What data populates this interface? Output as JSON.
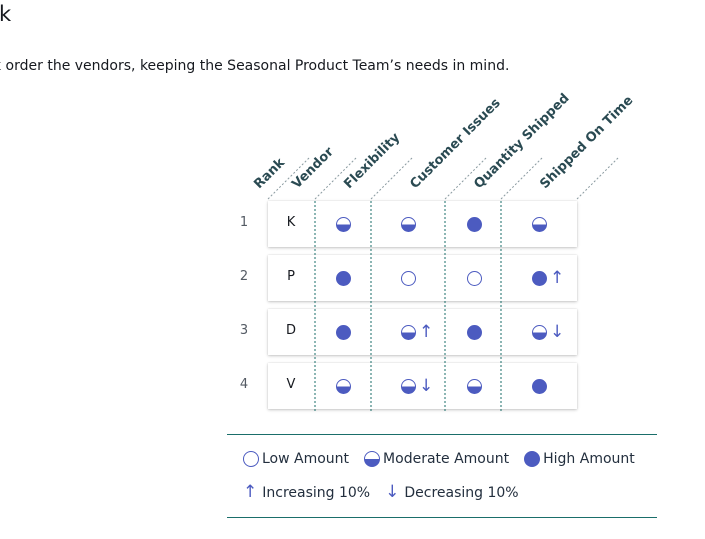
{
  "page": {
    "title": "sk",
    "instructions": "k order the vendors, keeping the Seasonal Product Team’s needs in mind."
  },
  "table": {
    "headers": [
      "Rank",
      "Vendor",
      "Flexibility",
      "Customer Issues",
      "Quantity Shipped",
      "Shipped On Time"
    ],
    "rows": [
      {
        "rank": "1",
        "vendor": "K",
        "cells": [
          {
            "level": "moderate",
            "trend": ""
          },
          {
            "level": "moderate",
            "trend": ""
          },
          {
            "level": "high",
            "trend": ""
          },
          {
            "level": "moderate",
            "trend": ""
          }
        ]
      },
      {
        "rank": "2",
        "vendor": "P",
        "cells": [
          {
            "level": "high",
            "trend": ""
          },
          {
            "level": "low",
            "trend": ""
          },
          {
            "level": "low",
            "trend": ""
          },
          {
            "level": "high",
            "trend": "up"
          }
        ]
      },
      {
        "rank": "3",
        "vendor": "D",
        "cells": [
          {
            "level": "high",
            "trend": ""
          },
          {
            "level": "moderate",
            "trend": "up"
          },
          {
            "level": "high",
            "trend": ""
          },
          {
            "level": "moderate",
            "trend": "down"
          }
        ]
      },
      {
        "rank": "4",
        "vendor": "V",
        "cells": [
          {
            "level": "moderate",
            "trend": ""
          },
          {
            "level": "moderate",
            "trend": "down"
          },
          {
            "level": "moderate",
            "trend": ""
          },
          {
            "level": "high",
            "trend": ""
          }
        ]
      }
    ]
  },
  "legend": {
    "levels": [
      {
        "level": "low",
        "label": "Low Amount",
        "icon": "empty-circle-icon"
      },
      {
        "level": "moderate",
        "label": "Moderate Amount",
        "icon": "half-circle-icon"
      },
      {
        "level": "high",
        "label": "High Amount",
        "icon": "filled-circle-icon"
      }
    ],
    "trends": [
      {
        "trend": "up",
        "label": "Increasing 10%",
        "icon": "up-arrow-icon"
      },
      {
        "trend": "down",
        "label": "Decreasing 10%",
        "icon": "down-arrow-icon"
      }
    ]
  },
  "colors": {
    "accent": "#4c5bc0",
    "divider": "#1a6e6a",
    "header_text": "#2a4a52"
  }
}
